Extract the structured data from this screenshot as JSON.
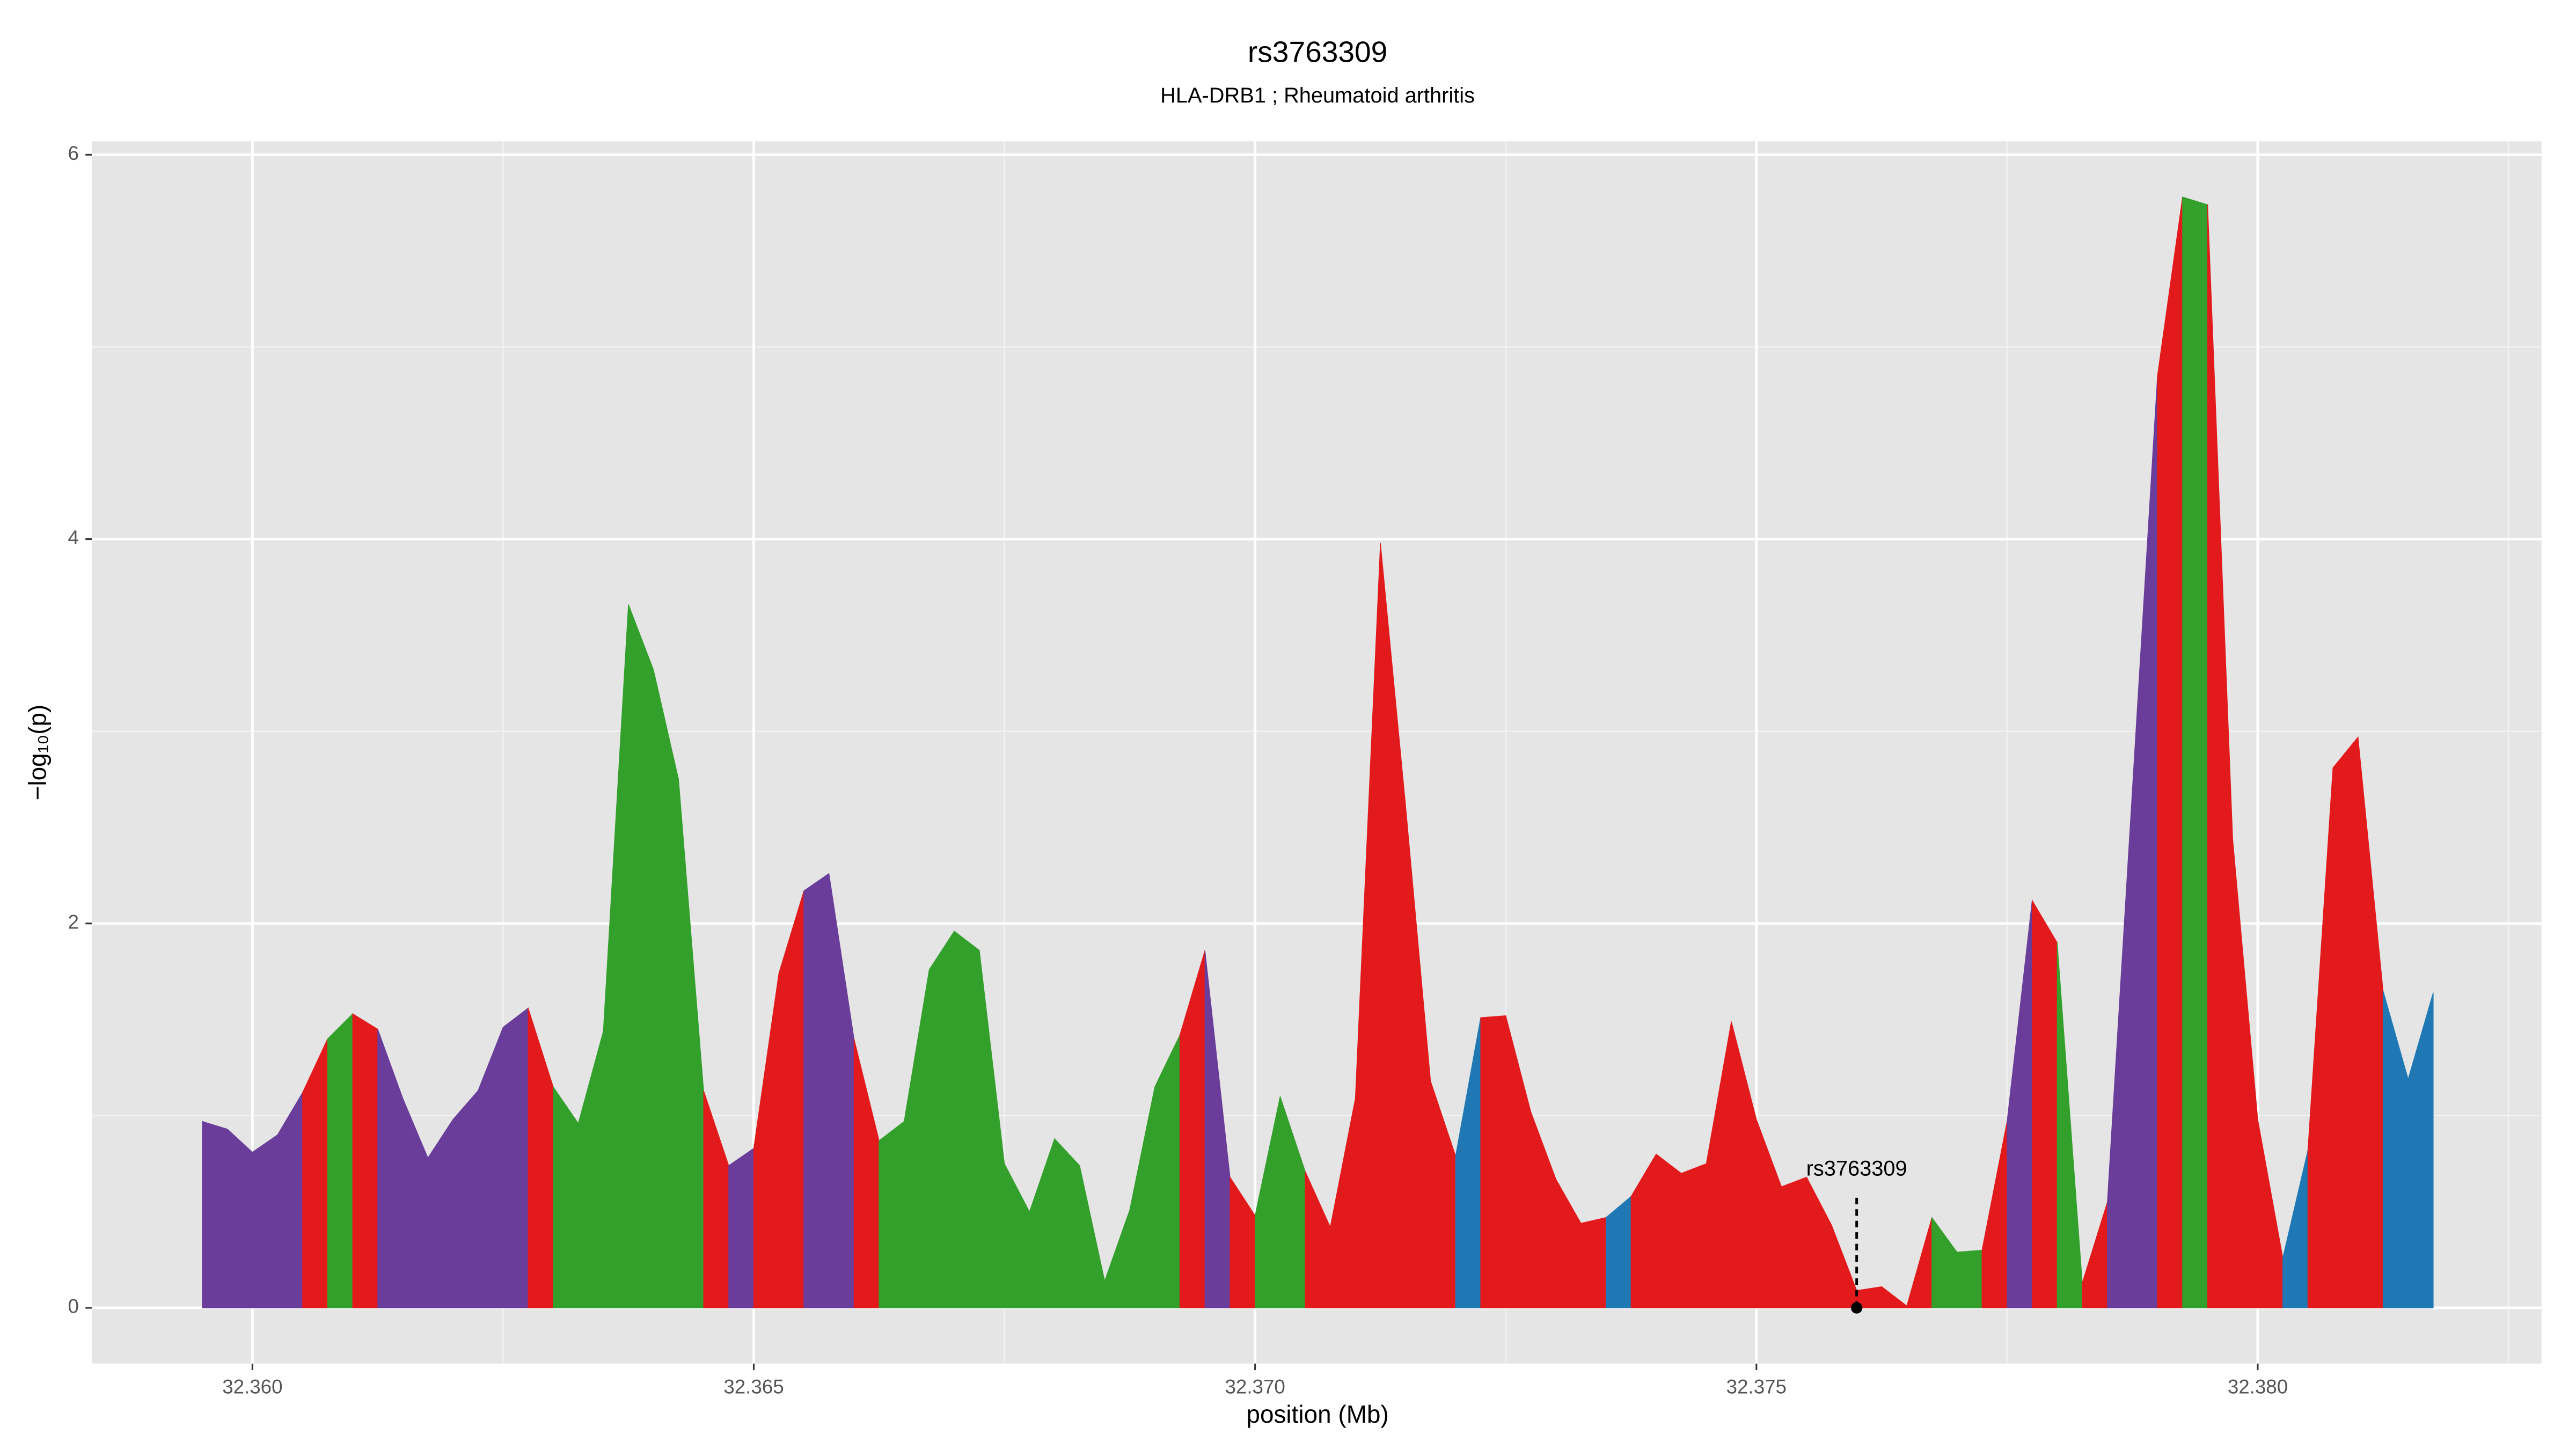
{
  "chart_data": {
    "type": "area",
    "title": "rs3763309",
    "subtitle": "HLA-DRB1 ; Rheumatoid arthritis",
    "x_label": "position (Mb)",
    "y_label": "−log₁₀(p)",
    "xlim": [
      32.3584,
      32.38283
    ],
    "ylim": [
      -0.29,
      6.07
    ],
    "xticks": [
      {
        "value": 32.36,
        "label": "32.360"
      },
      {
        "value": 32.365,
        "label": "32.365"
      },
      {
        "value": 32.37,
        "label": "32.370"
      },
      {
        "value": 32.375,
        "label": "32.375"
      },
      {
        "value": 32.38,
        "label": "32.380"
      }
    ],
    "yticks": [
      0,
      2,
      4,
      6
    ],
    "grid": true,
    "annotations": [
      {
        "text": "rs3763309",
        "x": 32.376,
        "y": 0
      }
    ],
    "series": [
      {
        "color": "#6a3d9a",
        "x": [
          32.3595,
          32.35975,
          32.36,
          32.36025,
          32.3605
        ],
        "values": [
          0.97,
          0.93,
          0.81,
          0.9,
          1.12
        ]
      },
      {
        "color": "#e31a1c",
        "x": [
          32.3605,
          32.36075
        ],
        "values": [
          1.12,
          1.4
        ]
      },
      {
        "color": "#33a02c",
        "x": [
          32.36075,
          32.361
        ],
        "values": [
          1.4,
          1.53
        ]
      },
      {
        "color": "#e31a1c",
        "x": [
          32.361,
          32.36125
        ],
        "values": [
          1.53,
          1.45
        ]
      },
      {
        "color": "#6a3d9a",
        "x": [
          32.36125,
          32.3615,
          32.36175,
          32.362,
          32.36225,
          32.3625,
          32.36275
        ],
        "values": [
          1.45,
          1.09,
          0.78,
          0.98,
          1.13,
          1.46,
          1.56
        ]
      },
      {
        "color": "#e31a1c",
        "x": [
          32.36275,
          32.363
        ],
        "values": [
          1.56,
          1.15
        ]
      },
      {
        "color": "#33a02c",
        "x": [
          32.363,
          32.36325,
          32.3635,
          32.36375,
          32.364,
          32.36425,
          32.3645
        ],
        "values": [
          1.15,
          0.96,
          1.44,
          3.66,
          3.32,
          2.75,
          1.13
        ]
      },
      {
        "color": "#e31a1c",
        "x": [
          32.3645,
          32.36475
        ],
        "values": [
          1.13,
          0.74
        ]
      },
      {
        "color": "#6a3d9a",
        "x": [
          32.36475,
          32.365
        ],
        "values": [
          0.74,
          0.83
        ]
      },
      {
        "color": "#e31a1c",
        "x": [
          32.365,
          32.36525,
          32.3655
        ],
        "values": [
          0.83,
          1.74,
          2.17
        ]
      },
      {
        "color": "#6a3d9a",
        "x": [
          32.3655,
          32.36575,
          32.366
        ],
        "values": [
          2.17,
          2.26,
          1.4
        ]
      },
      {
        "color": "#e31a1c",
        "x": [
          32.366,
          32.36625
        ],
        "values": [
          1.4,
          0.87
        ]
      },
      {
        "color": "#33a02c",
        "x": [
          32.36625,
          32.3665,
          32.36675,
          32.367,
          32.36725,
          32.3675,
          32.36775,
          32.368,
          32.36825,
          32.3685,
          32.36875,
          32.369,
          32.36925
        ],
        "values": [
          0.87,
          0.97,
          1.76,
          1.96,
          1.86,
          0.75,
          0.5,
          0.88,
          0.74,
          0.14,
          0.51,
          1.15,
          1.42
        ]
      },
      {
        "color": "#e31a1c",
        "x": [
          32.36925,
          32.3695
        ],
        "values": [
          1.42,
          1.86
        ]
      },
      {
        "color": "#6a3d9a",
        "x": [
          32.3695,
          32.36975
        ],
        "values": [
          1.86,
          0.68
        ]
      },
      {
        "color": "#e31a1c",
        "x": [
          32.36975,
          32.37
        ],
        "values": [
          0.68,
          0.48
        ]
      },
      {
        "color": "#33a02c",
        "x": [
          32.37,
          32.37025,
          32.3705
        ],
        "values": [
          0.48,
          1.1,
          0.71
        ]
      },
      {
        "color": "#e31a1c",
        "x": [
          32.3705,
          32.37075,
          32.371,
          32.37125,
          32.3715,
          32.37175,
          32.372
        ],
        "values": [
          0.71,
          0.42,
          1.09,
          3.98,
          2.62,
          1.18,
          0.79
        ]
      },
      {
        "color": "#1f78b4",
        "x": [
          32.372,
          32.37225
        ],
        "values": [
          0.79,
          1.51
        ]
      },
      {
        "color": "#e31a1c",
        "x": [
          32.37225,
          32.3725,
          32.37275,
          32.373,
          32.37325,
          32.3735
        ],
        "values": [
          1.51,
          1.52,
          1.02,
          0.67,
          0.44,
          0.47
        ]
      },
      {
        "color": "#1f78b4",
        "x": [
          32.3735,
          32.37375
        ],
        "values": [
          0.47,
          0.58
        ]
      },
      {
        "color": "#e31a1c",
        "x": [
          32.37375,
          32.374,
          32.37425,
          32.3745,
          32.37475,
          32.375,
          32.37525,
          32.3755,
          32.37575,
          32.376,
          32.37625,
          32.3765,
          32.37675
        ],
        "values": [
          0.58,
          0.8,
          0.7,
          0.75,
          1.49,
          0.98,
          0.63,
          0.68,
          0.43,
          0.09,
          0.11,
          0.01,
          0.47
        ]
      },
      {
        "color": "#33a02c",
        "x": [
          32.37675,
          32.377,
          32.37725
        ],
        "values": [
          0.47,
          0.29,
          0.3
        ]
      },
      {
        "color": "#e31a1c",
        "x": [
          32.37725,
          32.3775
        ],
        "values": [
          0.3,
          0.97
        ]
      },
      {
        "color": "#6a3d9a",
        "x": [
          32.3775,
          32.37775
        ],
        "values": [
          0.97,
          2.12
        ]
      },
      {
        "color": "#e31a1c",
        "x": [
          32.37775,
          32.378
        ],
        "values": [
          2.12,
          1.9
        ]
      },
      {
        "color": "#33a02c",
        "x": [
          32.378,
          32.37825
        ],
        "values": [
          1.9,
          0.13
        ]
      },
      {
        "color": "#e31a1c",
        "x": [
          32.37825,
          32.3785
        ],
        "values": [
          0.13,
          0.55
        ]
      },
      {
        "color": "#6a3d9a",
        "x": [
          32.3785,
          32.379
        ],
        "values": [
          0.55,
          4.85
        ]
      },
      {
        "color": "#e31a1c",
        "x": [
          32.379,
          32.37925
        ],
        "values": [
          4.85,
          5.78
        ]
      },
      {
        "color": "#33a02c",
        "x": [
          32.37925,
          32.3795
        ],
        "values": [
          5.78,
          5.74
        ]
      },
      {
        "color": "#e31a1c",
        "x": [
          32.3795,
          32.37975,
          32.38,
          32.38025
        ],
        "values": [
          5.74,
          2.44,
          0.98,
          0.26
        ]
      },
      {
        "color": "#1f78b4",
        "x": [
          32.38025,
          32.3805
        ],
        "values": [
          0.26,
          0.82
        ]
      },
      {
        "color": "#e31a1c",
        "x": [
          32.3805,
          32.38075,
          32.381,
          32.38125
        ],
        "values": [
          0.82,
          2.81,
          2.97,
          1.65
        ]
      },
      {
        "color": "#1f78b4",
        "x": [
          32.38125,
          32.3815,
          32.38175
        ],
        "values": [
          1.65,
          1.19,
          1.64
        ]
      }
    ]
  }
}
